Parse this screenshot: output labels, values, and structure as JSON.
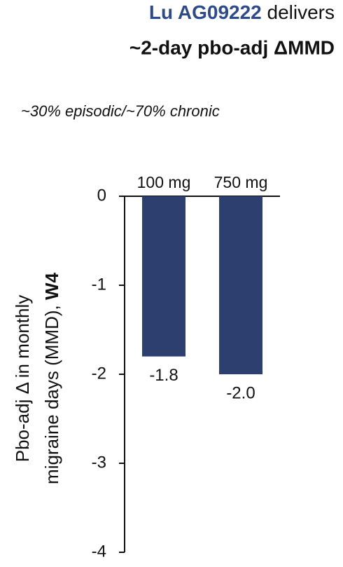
{
  "chart_data": {
    "type": "bar",
    "title_parts": [
      "Lu AG09222",
      "delivers",
      "~2-day pbo-adj ΔMMD"
    ],
    "subtitle": "~30% episodic/~70% chronic",
    "ylabel_parts": [
      "Pbo-adj Δ in monthly",
      "migraine days (MMD),",
      "W4"
    ],
    "categories": [
      "100 mg",
      "750 mg"
    ],
    "values": [
      -1.8,
      -2.0
    ],
    "value_labels": [
      "-1.8",
      "-2.0"
    ],
    "color": "#2d3f6e",
    "ylim": [
      -4,
      0
    ],
    "yticks": [
      0,
      -1,
      -2,
      -3,
      -4
    ]
  }
}
